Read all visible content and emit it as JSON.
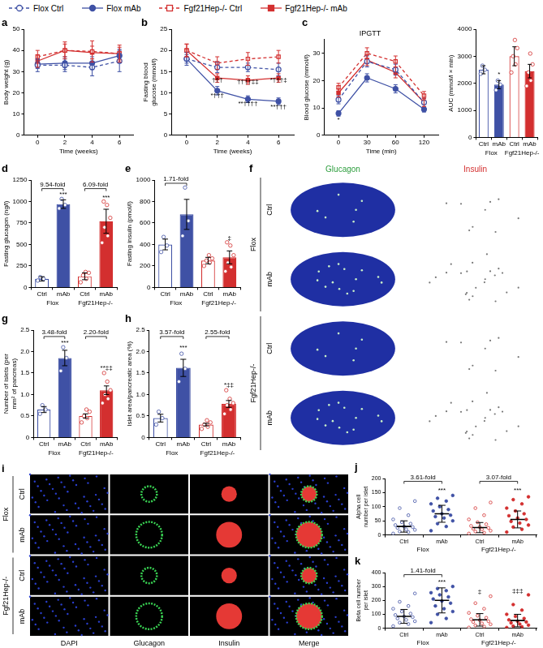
{
  "legend": "top",
  "series_styles": [
    {
      "name": "Flox Ctrl",
      "color": "#3F51A5",
      "marker": "open_circle",
      "line_style": "dashed"
    },
    {
      "name": "Flox mAb",
      "color": "#3F51A5",
      "marker": "circle",
      "line_style": "solid"
    },
    {
      "name": "Fgf21Hep-/- Ctrl",
      "color": "#D32F2F",
      "marker": "open_square",
      "line_style": "dashed"
    },
    {
      "name": "Fgf21Hep-/- mAb",
      "color": "#D32F2F",
      "marker": "square",
      "line_style": "solid"
    }
  ],
  "chart_data": [
    {
      "panel": "a",
      "type": "line",
      "x_label": "Time (weeks)",
      "y_label": "Body weight (g)",
      "categories": [
        "0",
        "2",
        "4",
        "6"
      ],
      "ylim": [
        0,
        50
      ],
      "yticks": [
        0,
        10,
        20,
        30,
        40,
        50
      ],
      "grid": false,
      "series": [
        {
          "values": [
            33,
            33,
            32,
            35
          ],
          "errors": [
            3,
            3,
            4,
            5
          ]
        },
        {
          "values": [
            33.5,
            34,
            34,
            37.5
          ],
          "errors": [
            2,
            3,
            3,
            3
          ]
        },
        {
          "values": [
            37,
            40,
            39.5,
            38.5
          ],
          "errors": [
            3,
            4,
            5,
            4
          ]
        },
        {
          "values": [
            35,
            40,
            39,
            38.5
          ],
          "errors": [
            3,
            3,
            3,
            3
          ]
        }
      ]
    },
    {
      "panel": "b",
      "type": "line",
      "x_label": "Time (weeks)",
      "y_label": "Fasting blood glucose (mmol/l)",
      "categories": [
        "0",
        "2",
        "4",
        "6"
      ],
      "ylim": [
        0,
        25
      ],
      "yticks": [
        0,
        5,
        10,
        15,
        20,
        25
      ],
      "grid": false,
      "series": [
        {
          "values": [
            18,
            16,
            16,
            15.5
          ],
          "errors": [
            1.5,
            1.2,
            1,
            1.5
          ]
        },
        {
          "values": [
            18,
            10.5,
            8.5,
            8
          ],
          "errors": [
            1,
            1,
            0.8,
            0.8
          ]
        },
        {
          "values": [
            20,
            17,
            18,
            18.5
          ],
          "errors": [
            1.5,
            1.5,
            1.5,
            1.5
          ]
        },
        {
          "values": [
            20,
            13.5,
            13,
            13.5
          ],
          "errors": [
            1.5,
            1,
            1,
            1
          ]
        }
      ],
      "annotations": [
        {
          "index": 1,
          "y": 12.2,
          "text": "†††"
        },
        {
          "index": 1,
          "y": 8.6,
          "text": "*†††"
        },
        {
          "index": 2,
          "y": 11.8,
          "text": "††††‡‡"
        },
        {
          "index": 2,
          "y": 6.6,
          "text": "**††††"
        },
        {
          "index": 3,
          "y": 12.2,
          "text": "*†††‡"
        },
        {
          "index": 3,
          "y": 6,
          "text": "**†††"
        }
      ]
    },
    {
      "panel": "c",
      "type": "line",
      "title": "IPGTT",
      "x_label": "Time (min)",
      "y_label": "Blood glucose (mmol/l)",
      "categories": [
        "0",
        "30",
        "60",
        "120"
      ],
      "ylim": [
        0,
        35
      ],
      "yticks": [
        0,
        10,
        20,
        30
      ],
      "grid": false,
      "series": [
        {
          "values": [
            13,
            27,
            24,
            12
          ],
          "errors": [
            1.5,
            2,
            2,
            1.5
          ]
        },
        {
          "values": [
            8,
            21,
            17,
            9.5
          ],
          "errors": [
            1,
            1.5,
            1.5,
            1
          ]
        },
        {
          "values": [
            17.5,
            30,
            27,
            14.5
          ],
          "errors": [
            1.5,
            2,
            2,
            1.5
          ]
        },
        {
          "values": [
            15.5,
            27.5,
            23,
            12
          ],
          "errors": [
            1.5,
            2,
            2,
            1.5
          ]
        }
      ],
      "annotations": [
        {
          "index": 0,
          "y": 4.5,
          "text": "*"
        }
      ]
    },
    {
      "type": "bar",
      "y_label": "AUC (mmol/l × min)",
      "categories": [
        "Ctrl",
        "mAb",
        "Ctrl",
        "mAb"
      ],
      "values": [
        2500,
        1950,
        3000,
        2450
      ],
      "errors": [
        150,
        150,
        350,
        250
      ],
      "points": [
        [
          2350,
          2500,
          2650
        ],
        [
          1750,
          1950,
          2100
        ],
        [
          2400,
          2700,
          3000,
          3300,
          3600
        ],
        [
          1900,
          2100,
          2400,
          2700,
          3100
        ]
      ],
      "colors": [
        "#3F51A5",
        "#3F51A5",
        "#D32F2F",
        "#D32F2F"
      ],
      "groups": [
        {
          "label": "Flox",
          "from": 0,
          "to": 1
        },
        {
          "label": "Fgf21Hep-/-",
          "from": 2,
          "to": 3
        }
      ],
      "ylim": [
        0,
        4000
      ],
      "yticks": [
        0,
        1000,
        2000,
        3000,
        4000
      ],
      "grid": false,
      "annotations": [
        {
          "index": 1,
          "y": 2200,
          "text": "*"
        }
      ]
    },
    {
      "panel": "d",
      "type": "bar",
      "y_label": "Fasting glucagon (ng/l)",
      "categories": [
        "Ctrl",
        "mAb",
        "Ctrl",
        "mAb"
      ],
      "values": [
        100,
        970,
        130,
        770
      ],
      "errors": [
        25,
        50,
        40,
        140
      ],
      "points": [
        [
          80,
          100,
          120
        ],
        [
          920,
          960,
          1030
        ],
        [
          60,
          100,
          140,
          170,
          180
        ],
        [
          520,
          600,
          700,
          810,
          960,
          1000
        ]
      ],
      "colors": [
        "#3F51A5",
        "#3F51A5",
        "#D32F2F",
        "#D32F2F"
      ],
      "groups": [
        {
          "label": "Flox",
          "from": 0,
          "to": 1
        },
        {
          "label": "Fgf21Hep-/-",
          "from": 2,
          "to": 3
        }
      ],
      "ylim": [
        0,
        1250
      ],
      "yticks": [
        0,
        250,
        500,
        750,
        1000,
        1250
      ],
      "grid": false,
      "comparisons": [
        {
          "from": 0,
          "to": 1,
          "y": 1150,
          "label": "9.54-fold"
        },
        {
          "from": 2,
          "to": 3,
          "y": 1150,
          "label": "6.09-fold"
        }
      ],
      "annotations": [
        {
          "index": 1,
          "y": 1045,
          "text": "***"
        },
        {
          "index": 3,
          "y": 1010,
          "text": "***"
        }
      ]
    },
    {
      "panel": "e",
      "type": "bar",
      "y_label": "Fasting insulin (pmol/l)",
      "categories": [
        "Ctrl",
        "mAb",
        "Ctrl",
        "mAb"
      ],
      "values": [
        400,
        680,
        250,
        280
      ],
      "errors": [
        50,
        140,
        30,
        60
      ],
      "points": [
        [
          330,
          390,
          470
        ],
        [
          480,
          620,
          930
        ],
        [
          200,
          230,
          250,
          270,
          300
        ],
        [
          150,
          190,
          230,
          300,
          390,
          420
        ]
      ],
      "colors": [
        "#3F51A5",
        "#3F51A5",
        "#D32F2F",
        "#D32F2F"
      ],
      "groups": [
        {
          "label": "Flox",
          "from": 0,
          "to": 1
        },
        {
          "label": "Fgf21Hep-/-",
          "from": 2,
          "to": 3
        }
      ],
      "ylim": [
        0,
        1000
      ],
      "yticks": [
        0,
        200,
        400,
        600,
        800,
        1000
      ],
      "grid": false,
      "comparisons": [
        {
          "from": 0,
          "to": 1,
          "y": 970,
          "label": "1.71-fold"
        }
      ],
      "annotations": [
        {
          "index": 3,
          "y": 430,
          "text": "‡"
        }
      ]
    },
    {
      "panel": "g",
      "type": "bar",
      "y_label": "Number of islets (per mm² of pancreas)",
      "categories": [
        "Ctrl",
        "mAb",
        "Ctrl",
        "mAb"
      ],
      "values": [
        0.65,
        1.85,
        0.5,
        1.1
      ],
      "errors": [
        0.07,
        0.18,
        0.05,
        0.1
      ],
      "points": [
        [
          0.55,
          0.65,
          0.75
        ],
        [
          1.55,
          1.85,
          2.1
        ],
        [
          0.35,
          0.45,
          0.5,
          0.6,
          0.65
        ],
        [
          0.8,
          0.9,
          1.0,
          1.1,
          1.3,
          1.5
        ]
      ],
      "colors": [
        "#3F51A5",
        "#3F51A5",
        "#D32F2F",
        "#D32F2F"
      ],
      "groups": [
        {
          "label": "Flox",
          "from": 0,
          "to": 1
        },
        {
          "label": "Fgf21Hep-/-",
          "from": 2,
          "to": 3
        }
      ],
      "ylim": [
        0,
        2.5
      ],
      "yticks": [
        0,
        0.5,
        {
          "value": 1,
          "label": "1.0"
        },
        1.5,
        {
          "value": 2,
          "label": "2.0"
        },
        2.5
      ],
      "grid": false,
      "comparisons": [
        {
          "from": 0,
          "to": 1,
          "y": 2.35,
          "label": "3.48-fold"
        },
        {
          "from": 2,
          "to": 3,
          "y": 2.35,
          "label": "2.20-fold"
        }
      ],
      "annotations": [
        {
          "index": 1,
          "y": 2.12,
          "text": "***"
        },
        {
          "index": 3,
          "y": 1.55,
          "text": "**‡‡"
        }
      ]
    },
    {
      "panel": "h",
      "type": "bar",
      "y_label": "Islet area/pancreatic area (%)",
      "categories": [
        "Ctrl",
        "mAb",
        "Ctrl",
        "mAb"
      ],
      "values": [
        0.45,
        1.62,
        0.3,
        0.78
      ],
      "errors": [
        0.09,
        0.2,
        0.03,
        0.08
      ],
      "points": [
        [
          0.3,
          0.45,
          0.6
        ],
        [
          1.3,
          1.6,
          1.95
        ],
        [
          0.2,
          0.25,
          0.3,
          0.35,
          0.4
        ],
        [
          0.55,
          0.65,
          0.75,
          0.8,
          0.9,
          1.1
        ]
      ],
      "colors": [
        "#3F51A5",
        "#3F51A5",
        "#D32F2F",
        "#D32F2F"
      ],
      "groups": [
        {
          "label": "Flox",
          "from": 0,
          "to": 1
        },
        {
          "label": "Fgf21Hep-/-",
          "from": 2,
          "to": 3
        }
      ],
      "ylim": [
        0,
        2.5
      ],
      "yticks": [
        0,
        0.5,
        {
          "value": 1,
          "label": "1.0"
        },
        1.5,
        {
          "value": 2,
          "label": "2.0"
        },
        2.5
      ],
      "grid": false,
      "comparisons": [
        {
          "from": 0,
          "to": 1,
          "y": 2.35,
          "label": "3.57-fold"
        },
        {
          "from": 2,
          "to": 3,
          "y": 2.35,
          "label": "2.55-fold"
        }
      ],
      "annotations": [
        {
          "index": 1,
          "y": 2.02,
          "text": "***"
        },
        {
          "index": 3,
          "y": 1.15,
          "text": "*‡‡"
        }
      ]
    },
    {
      "panel": "j",
      "type": "dot",
      "y_label": "Alpha cell number per islet",
      "categories": [
        "Ctrl",
        "mAb",
        "Ctrl",
        "mAb"
      ],
      "values": [
        30,
        75,
        26,
        55
      ],
      "errors": [
        20,
        30,
        18,
        30
      ],
      "points": [
        [
          5,
          10,
          12,
          18,
          20,
          25,
          28,
          30,
          35,
          40,
          45,
          55,
          70,
          95,
          120
        ],
        [
          15,
          30,
          40,
          50,
          60,
          65,
          70,
          75,
          85,
          90,
          100,
          110,
          120,
          130,
          140
        ],
        [
          5,
          8,
          12,
          15,
          20,
          22,
          25,
          28,
          32,
          38,
          45,
          55,
          70,
          95,
          115
        ],
        [
          10,
          20,
          28,
          35,
          42,
          48,
          55,
          60,
          68,
          75,
          85,
          95,
          110,
          125,
          135
        ]
      ],
      "colors": [
        "#3F51A5",
        "#3F51A5",
        "#D32F2F",
        "#D32F2F"
      ],
      "groups": [
        {
          "label": "Flox",
          "from": 0,
          "to": 1
        },
        {
          "label": "Fgf21Hep-/-",
          "from": 2,
          "to": 3
        }
      ],
      "ylim": [
        0,
        200
      ],
      "yticks": [
        0,
        50,
        100,
        150,
        200
      ],
      "grid": false,
      "comparisons": [
        {
          "from": 0,
          "to": 1,
          "y": 190,
          "label": "3.61-fold"
        },
        {
          "from": 2,
          "to": 3,
          "y": 190,
          "label": "3.07-fold"
        }
      ],
      "annotations": [
        {
          "index": 1,
          "y": 145,
          "text": "***"
        },
        {
          "index": 3,
          "y": 145,
          "text": "***"
        }
      ]
    },
    {
      "panel": "k",
      "type": "dot",
      "y_label": "Beta cell number per islet",
      "categories": [
        "Ctrl",
        "mAb",
        "Ctrl",
        "mAb"
      ],
      "values": [
        85,
        200,
        60,
        55
      ],
      "errors": [
        50,
        90,
        45,
        45
      ],
      "points": [
        [
          15,
          30,
          40,
          50,
          60,
          70,
          80,
          85,
          95,
          105,
          120,
          140,
          160,
          190,
          250
        ],
        [
          40,
          70,
          100,
          120,
          140,
          160,
          180,
          195,
          210,
          225,
          240,
          255,
          270,
          285,
          300
        ],
        [
          5,
          12,
          20,
          28,
          35,
          45,
          50,
          58,
          65,
          75,
          90,
          110,
          140,
          180,
          230
        ],
        [
          5,
          10,
          15,
          22,
          30,
          38,
          45,
          50,
          60,
          70,
          85,
          100,
          130,
          170,
          240
        ]
      ],
      "colors": [
        "#3F51A5",
        "#3F51A5",
        "#D32F2F",
        "#D32F2F"
      ],
      "groups": [
        {
          "label": "Flox",
          "from": 0,
          "to": 1
        },
        {
          "label": "Fgf21Hep-/-",
          "from": 2,
          "to": 3
        }
      ],
      "ylim": [
        0,
        400
      ],
      "yticks": [
        0,
        100,
        200,
        300,
        400
      ],
      "grid": false,
      "comparisons": [
        {
          "from": 0,
          "to": 1,
          "y": 385,
          "label": "1.41-fold"
        }
      ],
      "annotations": [
        {
          "index": 1,
          "y": 305,
          "text": "***"
        },
        {
          "index": 2,
          "y": 240,
          "text": "‡"
        },
        {
          "index": 3,
          "y": 245,
          "text": "‡‡‡"
        }
      ]
    }
  ],
  "image_panels": [
    {
      "panel": "f",
      "columns": [
        "Glucagon",
        "Insulin"
      ],
      "column_colors": [
        "#2E9E3E",
        "#D32F2F"
      ],
      "rows": [
        "Ctrl",
        "mAb",
        "Ctrl",
        "mAb"
      ],
      "groups": [
        "Flox",
        "Fgf21Hep-/-"
      ]
    },
    {
      "panel": "i",
      "columns": [
        "DAPI",
        "Glucagon",
        "Insulin",
        "Merge"
      ],
      "rows": [
        "Ctrl",
        "mAb",
        "Ctrl",
        "mAb"
      ],
      "groups": [
        "Flox",
        "Fgf21Hep-/-"
      ]
    }
  ]
}
